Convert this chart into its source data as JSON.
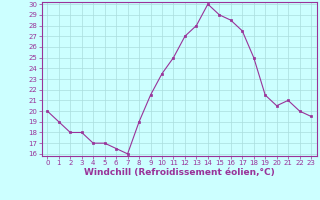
{
  "x": [
    0,
    1,
    2,
    3,
    4,
    5,
    6,
    7,
    8,
    9,
    10,
    11,
    12,
    13,
    14,
    15,
    16,
    17,
    18,
    19,
    20,
    21,
    22,
    23
  ],
  "y": [
    20,
    19,
    18,
    18,
    17,
    17,
    16.5,
    16,
    19,
    21.5,
    23.5,
    25,
    27,
    28,
    30,
    29,
    28.5,
    27.5,
    25,
    21.5,
    20.5,
    21,
    20,
    19.5
  ],
  "line_color": "#993399",
  "marker_color": "#993399",
  "bg_color": "#ccffff",
  "grid_color": "#aadddd",
  "xlabel": "Windchill (Refroidissement éolien,°C)",
  "xlabel_color": "#993399",
  "tick_color": "#993399",
  "spine_color": "#993399",
  "ylim": [
    16,
    30
  ],
  "xlim": [
    -0.5,
    23.5
  ],
  "yticks": [
    16,
    17,
    18,
    19,
    20,
    21,
    22,
    23,
    24,
    25,
    26,
    27,
    28,
    29,
    30
  ],
  "xticks": [
    0,
    1,
    2,
    3,
    4,
    5,
    6,
    7,
    8,
    9,
    10,
    11,
    12,
    13,
    14,
    15,
    16,
    17,
    18,
    19,
    20,
    21,
    22,
    23
  ],
  "tick_fontsize": 5.0,
  "xlabel_fontsize": 6.5
}
